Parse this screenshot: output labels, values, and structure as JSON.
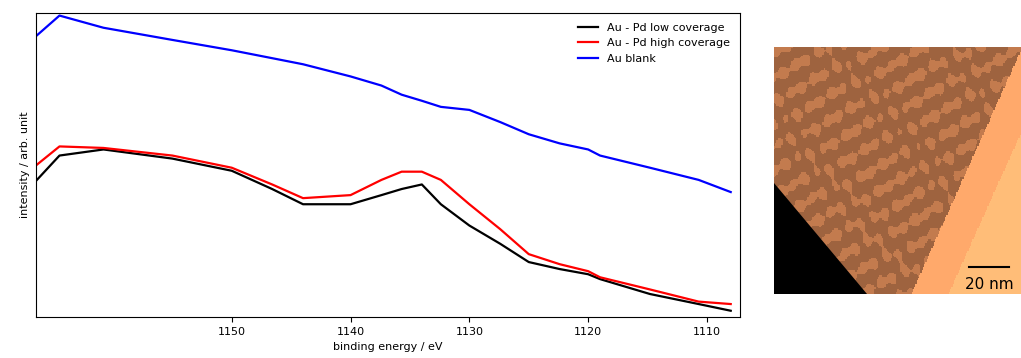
{
  "chart_data": {
    "type": "line",
    "x_label": "binding energy / eV",
    "y_label": "intensity / arb. unit",
    "x": [
      1166.4,
      1164.5,
      1160.8,
      1155,
      1150,
      1146.6,
      1144,
      1140,
      1137.4,
      1135.7,
      1134,
      1132.4,
      1130,
      1127.4,
      1125,
      1122.4,
      1120,
      1119,
      1114.8,
      1110.7,
      1108
    ],
    "series": [
      {
        "name": "Au - Pd low coverage",
        "color": "#000000",
        "values": [
          45,
          53,
          55,
          52,
          48,
          42,
          37,
          37,
          40,
          42,
          43.5,
          37,
          30,
          24,
          18,
          15.7,
          14,
          12.4,
          7.5,
          4.2,
          2
        ]
      },
      {
        "name": "Au - Pd high coverage",
        "color": "#ff0000",
        "values": [
          50,
          56,
          55.5,
          53,
          49,
          43.5,
          39,
          40,
          45,
          47.7,
          47.7,
          45,
          37,
          28.8,
          20.6,
          17.3,
          15,
          13,
          9,
          5,
          4.2
        ]
      },
      {
        "name": "Au blank",
        "color": "#0000ff",
        "values": [
          92.5,
          99,
          95,
          91,
          87.6,
          85,
          83,
          79,
          76,
          73,
          71,
          69,
          68,
          64,
          60,
          57,
          55,
          53,
          49,
          45,
          41
        ]
      }
    ],
    "xlim": [
      1166.5,
      1107.2
    ],
    "xticks": [
      1150,
      1140,
      1130,
      1120,
      1110
    ],
    "ylim": [
      0,
      100
    ],
    "tick_labels": "x",
    "legend": "upper right"
  },
  "inset_image": {
    "scale_bar_label": "20 nm"
  }
}
